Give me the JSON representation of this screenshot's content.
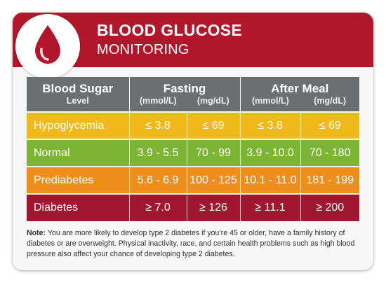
{
  "header": {
    "title": "BLOOD GLUCOSE",
    "subtitle": "MONITORING",
    "icon": "blood-drop-icon",
    "color": "#b2162a"
  },
  "table": {
    "col_header": {
      "blood_sugar": "Blood Sugar",
      "level": "Level",
      "fasting": "Fasting",
      "after_meal": "After Meal",
      "mmol": "(mmol/L)",
      "mgdl": "(mg/dL)"
    },
    "rows": [
      {
        "label": "Hypoglycemia",
        "fasting_mmol": "≤ 3.8",
        "fasting_mgdl": "≤ 69",
        "after_mmol": "≤ 3.8",
        "after_mgdl": "≤ 69",
        "color": "#f2b91b"
      },
      {
        "label": "Normal",
        "fasting_mmol": "3.9 - 5.5",
        "fasting_mgdl": "70 - 99",
        "after_mmol": "3.9 - 10.0",
        "after_mgdl": "70 - 180",
        "color": "#7cb533"
      },
      {
        "label": "Prediabetes",
        "fasting_mmol": "5.6 - 6.9",
        "fasting_mgdl": "100 - 125",
        "after_mmol": "10.1 - 11.0",
        "after_mgdl": "181 - 199",
        "color": "#ee8f1c"
      },
      {
        "label": "Diabetes",
        "fasting_mmol": "≥ 7.0",
        "fasting_mgdl": "≥ 126",
        "after_mmol": "≥ 11.1",
        "after_mgdl": "≥ 200",
        "color": "#a0172f"
      }
    ]
  },
  "note": {
    "label": "Note:",
    "text": "You are more likely to develop type 2 diabetes if you’re 45 or older, have a family history of diabetes or are overweight. Physical inactivity, race, and certain health problems such as high blood pressure also affect your chance of developing type 2 diabetes."
  }
}
